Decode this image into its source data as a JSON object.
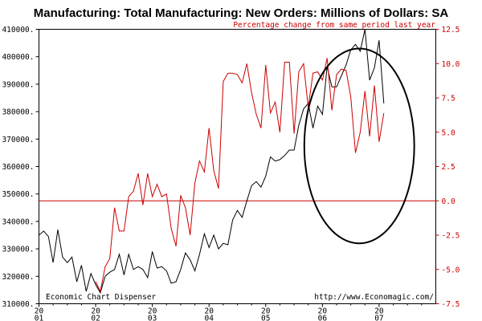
{
  "chart_data": {
    "type": "line",
    "title": "Manufacturing: Total Manufacturing: New Orders: Millions of Dollars: SA",
    "subtitle": "Percentage change from same period last year",
    "left_axis": {
      "ylim": [
        310000,
        410000
      ],
      "ticks": [
        310000,
        320000,
        330000,
        340000,
        350000,
        360000,
        370000,
        380000,
        390000,
        400000,
        410000
      ],
      "tick_labels": [
        "310000.",
        "320000.",
        "330000.",
        "340000.",
        "350000.",
        "360000.",
        "370000.",
        "380000.",
        "390000.",
        "400000.",
        "410000."
      ],
      "color": "#000000"
    },
    "right_axis": {
      "ylim": [
        -7.5,
        12.5
      ],
      "ticks": [
        -7.5,
        -5.0,
        -2.5,
        0.0,
        2.5,
        5.0,
        7.5,
        10.0,
        12.5
      ],
      "tick_labels": [
        "-7.5",
        "-5.0",
        "-2.5",
        "0.0",
        "2.5",
        "5.0",
        "7.5",
        "10.0",
        "12.5"
      ],
      "color": "#cc0000"
    },
    "x_axis": {
      "range": [
        2001.0,
        2008.0
      ],
      "ticks": [
        2001,
        2002,
        2003,
        2004,
        2005,
        2006,
        2007
      ],
      "tick_labels_top": [
        "20",
        "20",
        "20",
        "20",
        "20",
        "20",
        "20"
      ],
      "tick_labels_bottom": [
        "01",
        "02",
        "03",
        "04",
        "05",
        "06",
        "07"
      ]
    },
    "zero_line": 0.0,
    "annotation": {
      "shape": "ellipse",
      "center": [
        2006.65,
        4.0
      ],
      "radii_x_years": 0.97,
      "radii_y_pct": 7.1
    },
    "series": [
      {
        "axis": "left",
        "color": "#000000",
        "x": [
          2001.0,
          2001.083,
          2001.167,
          2001.25,
          2001.333,
          2001.417,
          2001.5,
          2001.583,
          2001.667,
          2001.75,
          2001.833,
          2001.917,
          2002.0,
          2002.083,
          2002.167,
          2002.25,
          2002.333,
          2002.417,
          2002.5,
          2002.583,
          2002.667,
          2002.75,
          2002.833,
          2002.917,
          2003.0,
          2003.083,
          2003.167,
          2003.25,
          2003.333,
          2003.417,
          2003.5,
          2003.583,
          2003.667,
          2003.75,
          2003.833,
          2003.917,
          2004.0,
          2004.083,
          2004.167,
          2004.25,
          2004.333,
          2004.417,
          2004.5,
          2004.583,
          2004.667,
          2004.75,
          2004.833,
          2004.917,
          2005.0,
          2005.083,
          2005.167,
          2005.25,
          2005.333,
          2005.417,
          2005.5,
          2005.583,
          2005.667,
          2005.75,
          2005.833,
          2005.917,
          2006.0,
          2006.083,
          2006.167,
          2006.25,
          2006.333,
          2006.417,
          2006.5,
          2006.583,
          2006.667,
          2006.75,
          2006.833,
          2006.917,
          2007.0,
          2007.083
        ],
        "values": [
          335000,
          336500,
          334500,
          325000,
          337000,
          327000,
          325000,
          327000,
          318000,
          324000,
          314500,
          321000,
          317000,
          314000,
          320000,
          321500,
          322500,
          328000,
          320500,
          328000,
          322500,
          323500,
          322500,
          319500,
          329000,
          323000,
          323500,
          322000,
          317500,
          318000,
          322500,
          328500,
          326000,
          322000,
          328000,
          335500,
          330500,
          335000,
          330000,
          332000,
          331500,
          340500,
          344000,
          341500,
          347500,
          353000,
          354500,
          352500,
          356500,
          363500,
          362000,
          362500,
          364000,
          366000,
          366000,
          375000,
          381000,
          383000,
          374000,
          382000,
          379000,
          396500,
          389000,
          389000,
          393000,
          397000,
          402500,
          404500,
          402000,
          410000,
          391500,
          396000,
          406000,
          383000
        ]
      },
      {
        "axis": "right",
        "color": "#cc0000",
        "x": [
          2002.0,
          2002.083,
          2002.167,
          2002.25,
          2002.333,
          2002.417,
          2002.5,
          2002.583,
          2002.667,
          2002.75,
          2002.833,
          2002.917,
          2003.0,
          2003.083,
          2003.167,
          2003.25,
          2003.333,
          2003.417,
          2003.5,
          2003.583,
          2003.667,
          2003.75,
          2003.833,
          2003.917,
          2004.0,
          2004.083,
          2004.167,
          2004.25,
          2004.333,
          2004.417,
          2004.5,
          2004.583,
          2004.667,
          2004.75,
          2004.833,
          2004.917,
          2005.0,
          2005.083,
          2005.167,
          2005.25,
          2005.333,
          2005.417,
          2005.5,
          2005.583,
          2005.667,
          2005.75,
          2005.833,
          2005.917,
          2006.0,
          2006.083,
          2006.167,
          2006.25,
          2006.333,
          2006.417,
          2006.5,
          2006.583,
          2006.667,
          2006.75,
          2006.833,
          2006.917,
          2007.0,
          2007.083
        ],
        "values": [
          -5.9,
          -6.6,
          -4.8,
          -4.2,
          -0.5,
          -2.2,
          -2.2,
          0.3,
          0.7,
          2.0,
          -0.3,
          2.0,
          0.3,
          1.2,
          0.3,
          0.5,
          -2.0,
          -3.3,
          0.4,
          -0.5,
          -2.5,
          1.3,
          2.9,
          2.1,
          5.3,
          2.2,
          0.9,
          8.7,
          9.3,
          9.3,
          9.2,
          8.6,
          10.0,
          7.9,
          6.3,
          5.3,
          9.9,
          6.4,
          7.2,
          5.0,
          10.1,
          10.1,
          4.9,
          9.4,
          10.0,
          6.8,
          9.3,
          9.4,
          8.8,
          10.4,
          6.6,
          9.2,
          9.6,
          9.5,
          7.6,
          3.5,
          5.0,
          8.0,
          4.7,
          8.4,
          4.3,
          6.4
        ]
      }
    ]
  },
  "credits": {
    "left": "Economic Chart Dispenser",
    "right": "http://www.Economagic.com/"
  }
}
